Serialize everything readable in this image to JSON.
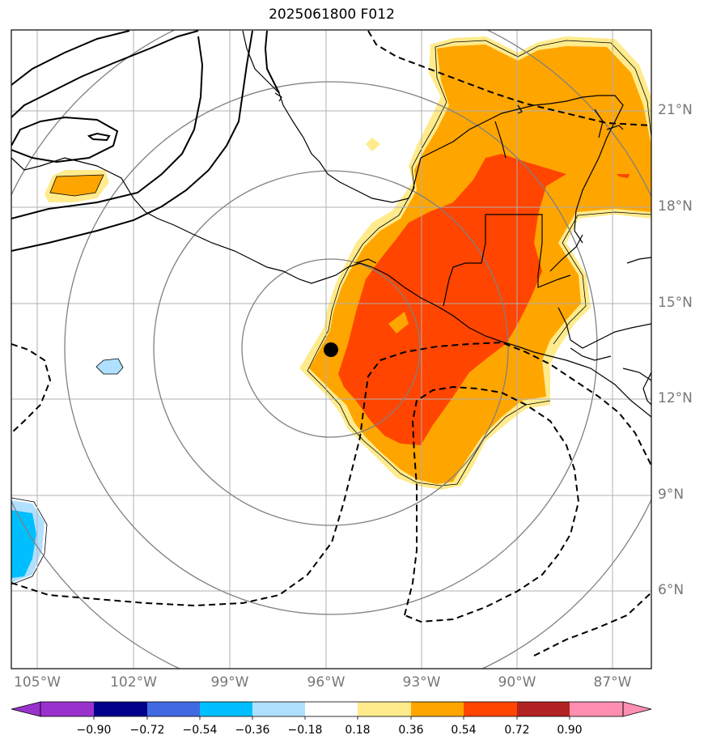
{
  "title": "2025061800 F012",
  "lat_labels": [
    "21°N",
    "18°N",
    "15°N",
    "12°N",
    "9°N",
    "6°N"
  ],
  "lon_labels": [
    "105°W",
    "102°W",
    "99°W",
    "96°W",
    "93°W",
    "90°W",
    "87°W"
  ],
  "colorbar": {
    "ticks": [
      "−0.90",
      "−0.72",
      "−0.54",
      "−0.36",
      "−0.18",
      "0.18",
      "0.36",
      "0.54",
      "0.72",
      "0.90"
    ],
    "colors": [
      "#9932cc",
      "#00008b",
      "#4169e1",
      "#00bfff",
      "#b0e0ff",
      "#ffffff",
      "#ffeb8c",
      "#ffa500",
      "#ff4500",
      "#b22222",
      "#ff8fb0"
    ]
  },
  "fill_colors": {
    "light_yellow": "#ffeb8c",
    "orange": "#ffa500",
    "red_orange": "#ff4500",
    "light_blue": "#b0e0ff",
    "blue": "#00bfff"
  },
  "marker": {
    "label": "storm center",
    "lon": -95.8,
    "lat": 13.5
  }
}
